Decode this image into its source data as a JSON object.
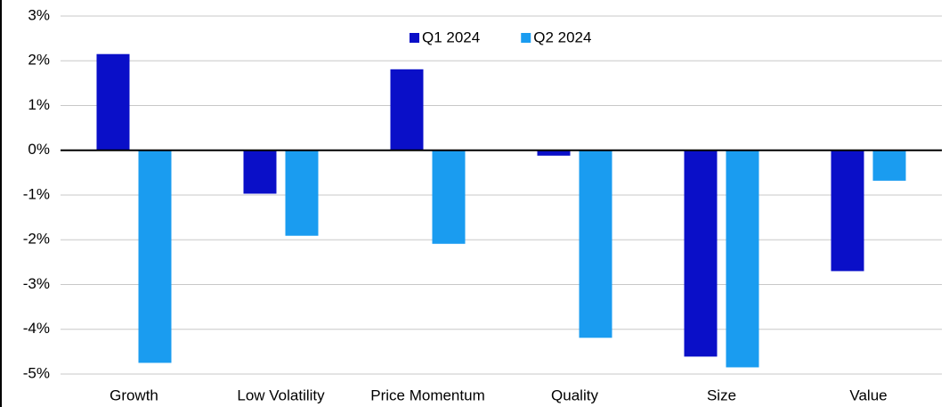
{
  "chart_data": {
    "type": "bar",
    "categories": [
      "Growth",
      "Low Volatility",
      "Price Momentum",
      "Quality",
      "Size",
      "Value"
    ],
    "series": [
      {
        "name": "Q1 2024",
        "color": "#0a0fc8",
        "values": [
          2.15,
          -0.97,
          1.81,
          -0.12,
          -4.61,
          -2.7
        ]
      },
      {
        "name": "Q2 2024",
        "color": "#1a9cf0",
        "values": [
          -4.75,
          -1.91,
          -2.09,
          -4.19,
          -4.85,
          -0.68
        ]
      }
    ],
    "ylim": [
      -5,
      3
    ],
    "yticks": [
      {
        "value": -5,
        "label": "-5%"
      },
      {
        "value": -4,
        "label": "-4%"
      },
      {
        "value": -3,
        "label": "-3%"
      },
      {
        "value": -2,
        "label": "-2%"
      },
      {
        "value": -1,
        "label": "-1%"
      },
      {
        "value": 0,
        "label": "0%"
      },
      {
        "value": 1,
        "label": "1%"
      },
      {
        "value": 2,
        "label": "2%"
      },
      {
        "value": 3,
        "label": "3%"
      }
    ],
    "grid": true,
    "legend": "top"
  }
}
